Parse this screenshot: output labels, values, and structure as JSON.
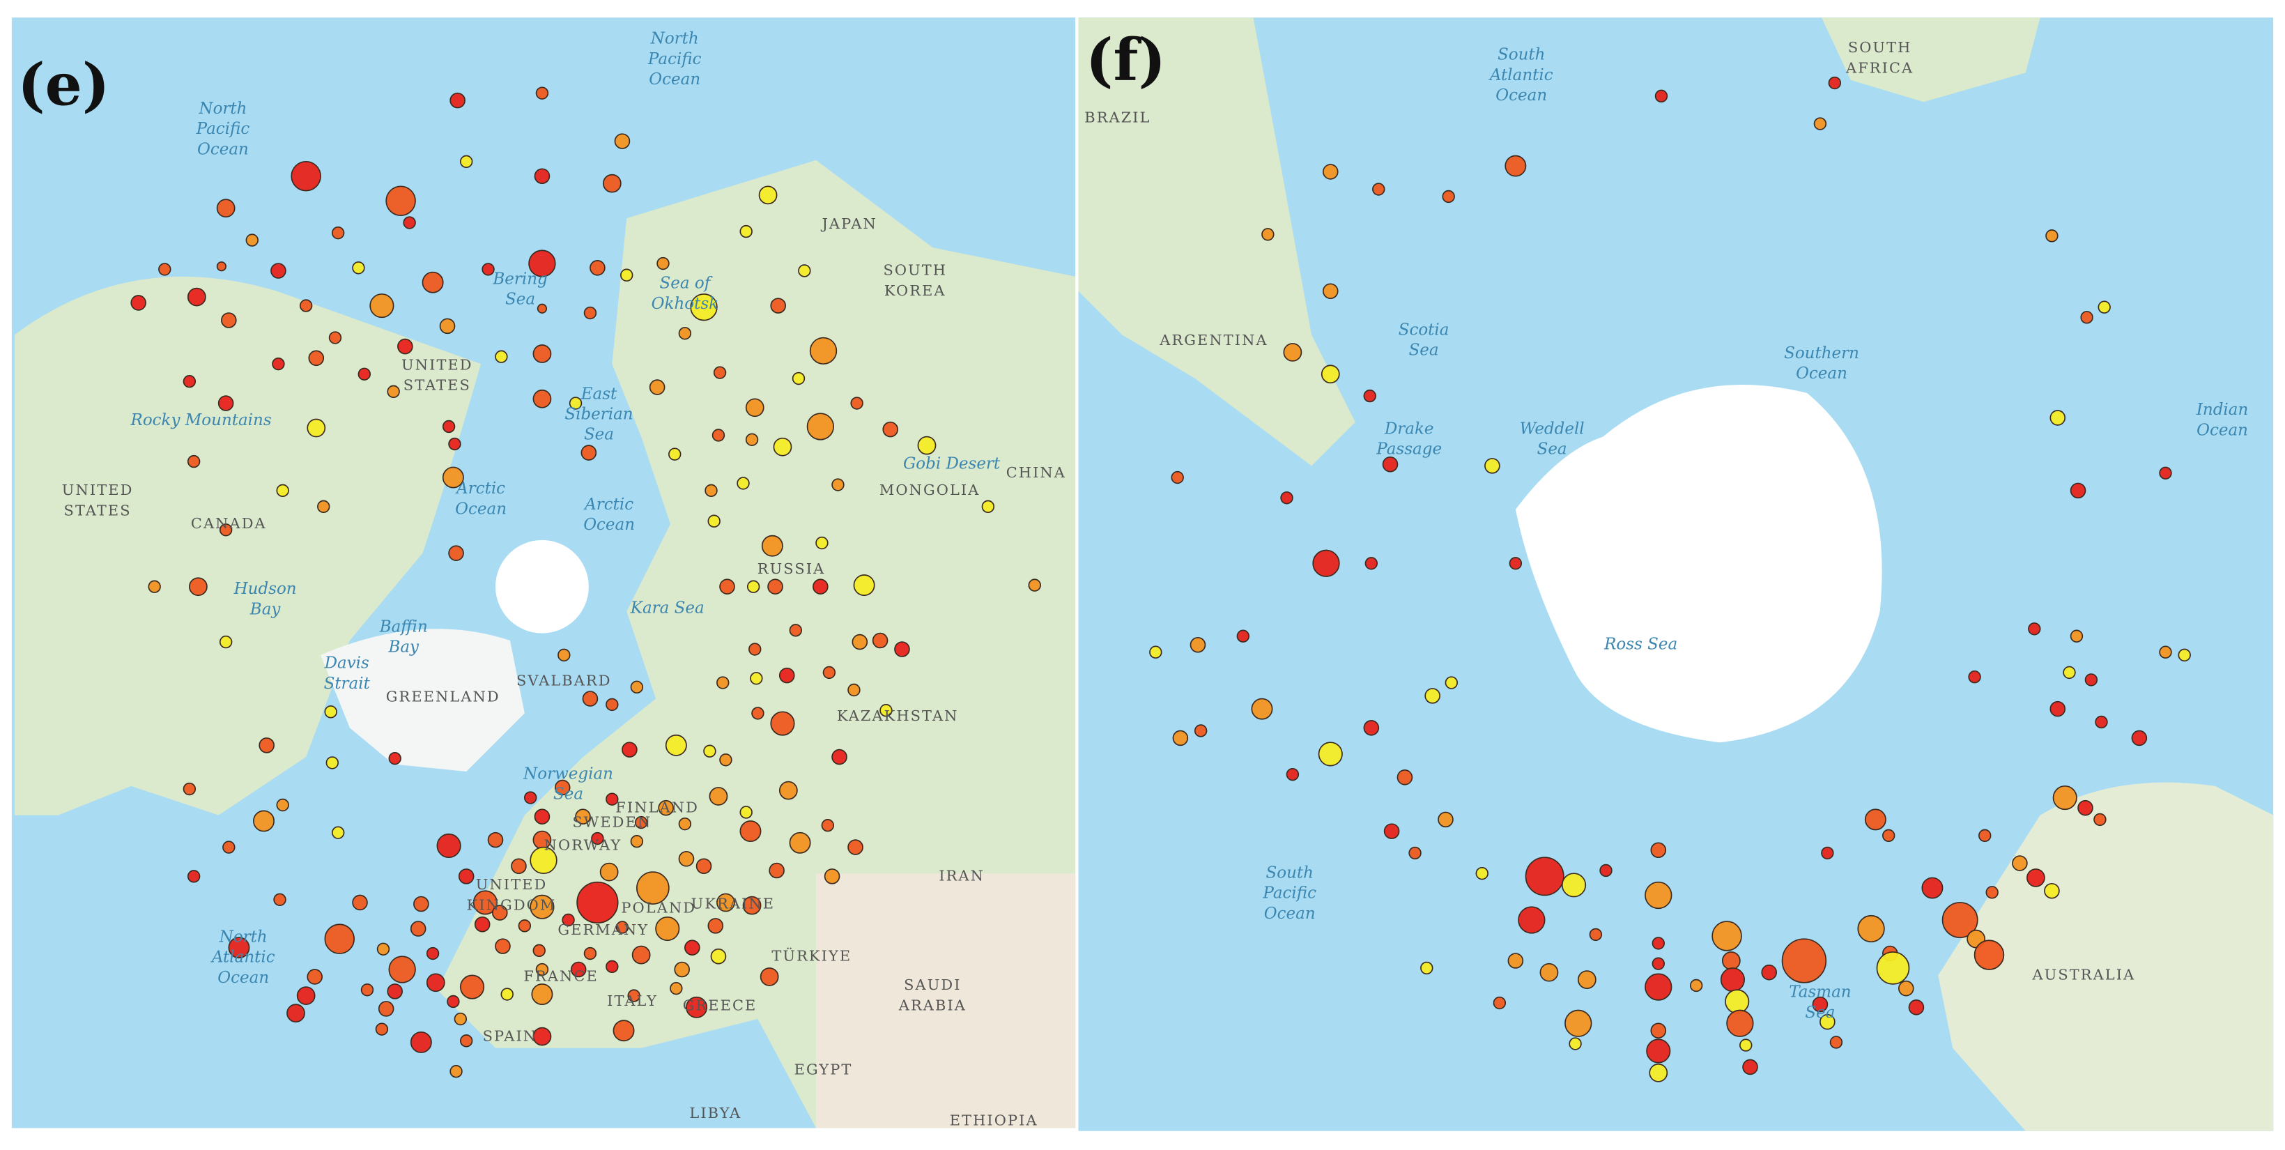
{
  "panels": [
    {
      "label": "(e)",
      "places": [
        {
          "lines": [
            "North",
            "Pacific",
            "Ocean"
          ]
        },
        {
          "lines": [
            "North",
            "Pacific",
            "Ocean"
          ]
        },
        {
          "lines": [
            "JAPAN"
          ]
        },
        {
          "lines": [
            "SOUTH",
            "KOREA"
          ]
        },
        {
          "lines": [
            "Bering",
            "Sea"
          ]
        },
        {
          "lines": [
            "Sea of",
            "Okhotsk"
          ]
        },
        {
          "lines": [
            "UNITED",
            "STATES"
          ]
        },
        {
          "lines": [
            "Rocky Mountains"
          ]
        },
        {
          "lines": [
            "UNITED",
            "STATES"
          ]
        },
        {
          "lines": [
            "CANADA"
          ]
        },
        {
          "lines": [
            "East",
            "Siberian",
            "Sea"
          ]
        },
        {
          "lines": [
            "Arctic",
            "Ocean"
          ]
        },
        {
          "lines": [
            "Arctic",
            "Ocean"
          ]
        },
        {
          "lines": [
            "Gobi Desert"
          ]
        },
        {
          "lines": [
            "CHINA"
          ]
        },
        {
          "lines": [
            "MONGOLIA"
          ]
        },
        {
          "lines": [
            "RUSSIA"
          ]
        },
        {
          "lines": [
            "Hudson",
            "Bay"
          ]
        },
        {
          "lines": [
            "Baffin",
            "Bay"
          ]
        },
        {
          "lines": [
            "Kara Sea"
          ]
        },
        {
          "lines": [
            "GREENLAND"
          ]
        },
        {
          "lines": [
            "SVALBARD"
          ]
        },
        {
          "lines": [
            "Davis",
            "Strait"
          ]
        },
        {
          "lines": [
            "KAZAKHSTAN"
          ]
        },
        {
          "lines": [
            "Norwegian",
            "Sea"
          ]
        },
        {
          "lines": [
            "FINLAND"
          ]
        },
        {
          "lines": [
            "SWEDEN"
          ]
        },
        {
          "lines": [
            "NORWAY"
          ]
        },
        {
          "lines": [
            "IRAN"
          ]
        },
        {
          "lines": [
            "POLAND"
          ]
        },
        {
          "lines": [
            "UKRAINE"
          ]
        },
        {
          "lines": [
            "UNITED",
            "KINGDOM"
          ]
        },
        {
          "lines": [
            "GERMANY"
          ]
        },
        {
          "lines": [
            "North",
            "Atlantic",
            "Ocean"
          ]
        },
        {
          "lines": [
            "FRANCE"
          ]
        },
        {
          "lines": [
            "TÜRKIYE"
          ]
        },
        {
          "lines": [
            "SAUDI",
            "ARABIA"
          ]
        },
        {
          "lines": [
            "ITALY"
          ]
        },
        {
          "lines": [
            "GREECE"
          ]
        },
        {
          "lines": [
            "SPAIN"
          ]
        },
        {
          "lines": [
            "EGYPT"
          ]
        },
        {
          "lines": [
            "LIBYA"
          ]
        },
        {
          "lines": [
            "ETHIOPIA"
          ]
        }
      ]
    },
    {
      "label": "(f)",
      "places": [
        {
          "lines": [
            "BRAZIL"
          ]
        },
        {
          "lines": [
            "South",
            "Atlantic",
            "Ocean"
          ]
        },
        {
          "lines": [
            "SOUTH",
            "AFRICA"
          ]
        },
        {
          "lines": [
            "ARGENTINA"
          ]
        },
        {
          "lines": [
            "Scotia",
            "Sea"
          ]
        },
        {
          "lines": [
            "Southern",
            "Ocean"
          ]
        },
        {
          "lines": [
            "Drake",
            "Passage"
          ]
        },
        {
          "lines": [
            "Weddell",
            "Sea"
          ]
        },
        {
          "lines": [
            "Indian",
            "Ocean"
          ]
        },
        {
          "lines": [
            "Ross Sea"
          ]
        },
        {
          "lines": [
            "South",
            "Pacific",
            "Ocean"
          ]
        },
        {
          "lines": [
            "AUSTRALIA"
          ]
        },
        {
          "lines": [
            "Tasman",
            "Sea"
          ]
        }
      ]
    }
  ]
}
